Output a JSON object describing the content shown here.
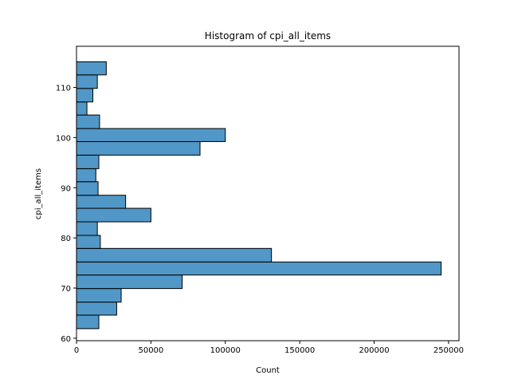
{
  "chart_data": {
    "type": "bar",
    "orientation": "horizontal",
    "title": "Histogram of cpi_all_items",
    "xlabel": "Count",
    "ylabel": "cpi_all_items",
    "xlim": [
      0,
      257000
    ],
    "ylim": [
      59.5,
      118.2
    ],
    "x_ticks": [
      0,
      50000,
      100000,
      150000,
      200000,
      250000
    ],
    "x_tick_labels": [
      "0",
      "50000",
      "100000",
      "150000",
      "200000",
      "250000"
    ],
    "y_ticks": [
      60,
      70,
      80,
      90,
      100,
      110
    ],
    "y_tick_labels": [
      "60",
      "70",
      "80",
      "90",
      "100",
      "110"
    ],
    "grid": false,
    "legend": "none",
    "bar_color": "#5197c7",
    "edge_color": "#000000",
    "bins": [
      {
        "start": 61.9,
        "end": 64.6,
        "count": 15000
      },
      {
        "start": 64.6,
        "end": 67.2,
        "count": 27000
      },
      {
        "start": 67.2,
        "end": 69.9,
        "count": 30000
      },
      {
        "start": 69.9,
        "end": 72.6,
        "count": 71000
      },
      {
        "start": 72.6,
        "end": 75.2,
        "count": 245000
      },
      {
        "start": 75.2,
        "end": 77.9,
        "count": 131000
      },
      {
        "start": 77.9,
        "end": 80.5,
        "count": 16000
      },
      {
        "start": 80.5,
        "end": 83.2,
        "count": 14000
      },
      {
        "start": 83.2,
        "end": 85.9,
        "count": 50000
      },
      {
        "start": 85.9,
        "end": 88.5,
        "count": 33000
      },
      {
        "start": 88.5,
        "end": 91.2,
        "count": 14500
      },
      {
        "start": 91.2,
        "end": 93.8,
        "count": 13000
      },
      {
        "start": 93.8,
        "end": 96.5,
        "count": 15000
      },
      {
        "start": 96.5,
        "end": 99.2,
        "count": 83000
      },
      {
        "start": 99.2,
        "end": 101.8,
        "count": 100000
      },
      {
        "start": 101.8,
        "end": 104.5,
        "count": 15500
      },
      {
        "start": 104.5,
        "end": 107.1,
        "count": 7000
      },
      {
        "start": 107.1,
        "end": 109.8,
        "count": 11000
      },
      {
        "start": 109.8,
        "end": 112.5,
        "count": 14000
      },
      {
        "start": 112.5,
        "end": 115.1,
        "count": 20000
      }
    ]
  }
}
